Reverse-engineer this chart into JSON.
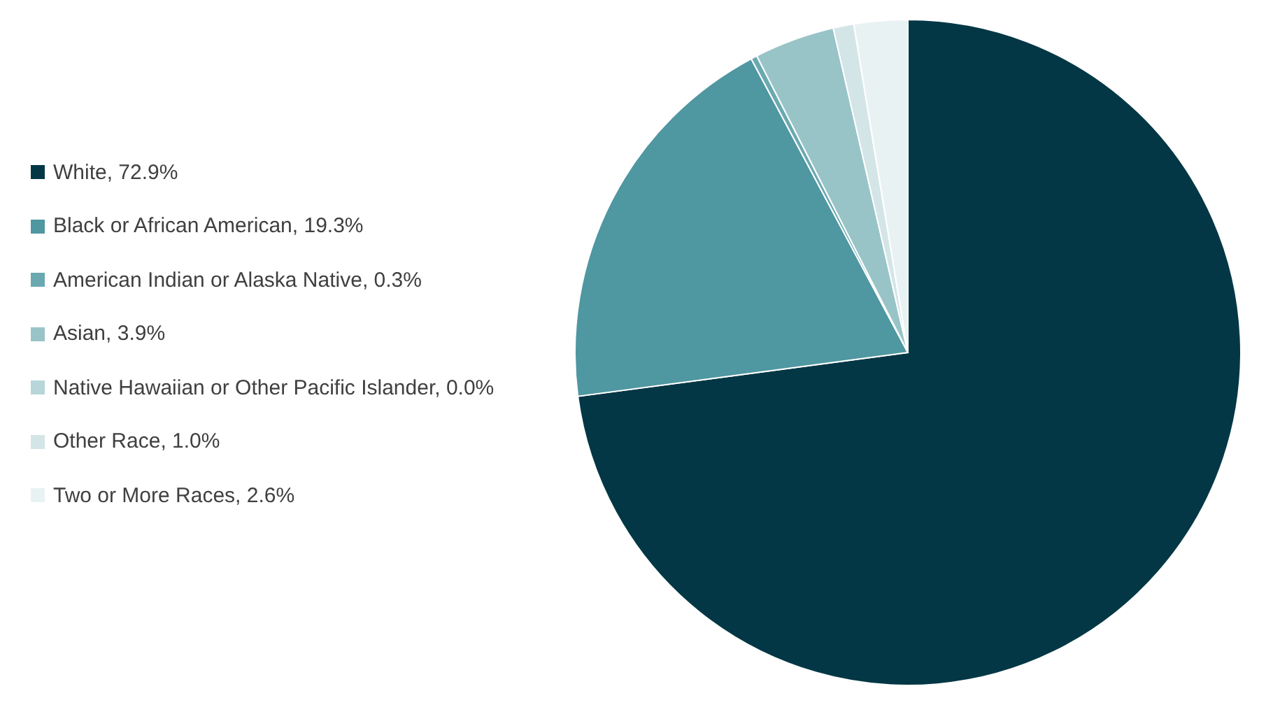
{
  "chart_data": {
    "type": "pie",
    "categories": [
      "White, 72.9%",
      "Black or African American, 19.3%",
      "American Indian or Alaska Native, 0.3%",
      "Asian, 3.9%",
      "Native Hawaiian or Other Pacific Islander, 0.0%",
      "Other Race, 1.0%",
      "Two or More Races, 2.6%"
    ],
    "values": [
      72.9,
      19.3,
      0.3,
      3.9,
      0.0,
      1.0,
      2.6
    ],
    "colors": [
      "#033745",
      "#4f97a1",
      "#6aa9b0",
      "#98c4c8",
      "#b6d6d9",
      "#d3e5e7",
      "#e9f2f3"
    ],
    "legend": "left"
  }
}
